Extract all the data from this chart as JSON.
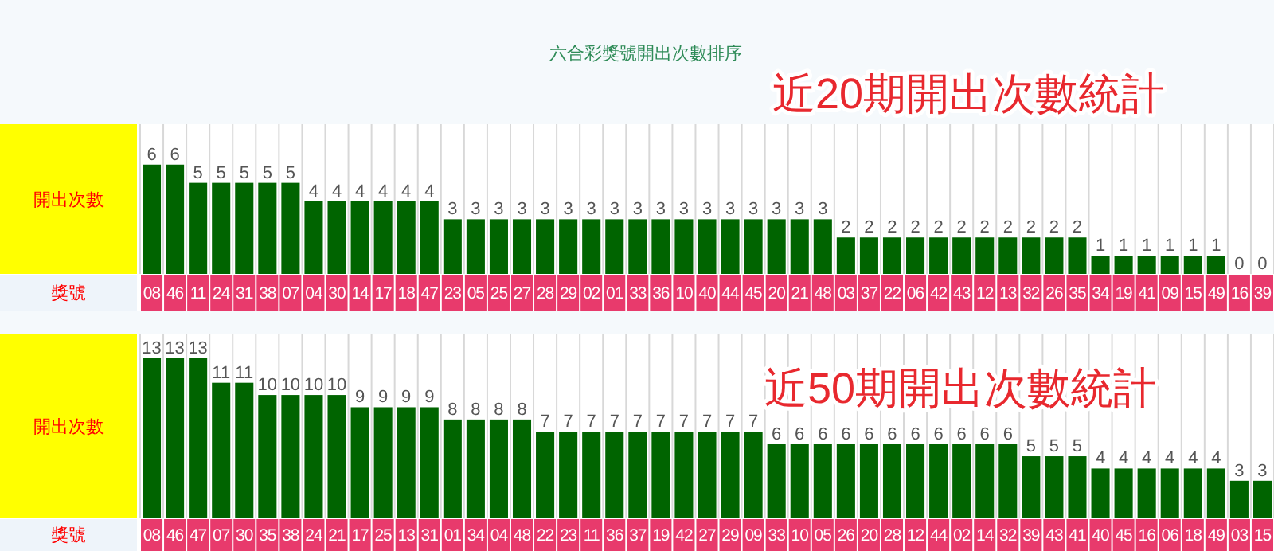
{
  "chart_data": [
    {
      "type": "bar",
      "title": "六合彩獎號開出次數排序",
      "subtitle": "近20期開出次數統計",
      "ylabel": "開出次數",
      "xlabel": "獎號",
      "grid": "x",
      "data_labels": true,
      "color": "#006400",
      "categories": [
        "08",
        "46",
        "11",
        "24",
        "31",
        "38",
        "07",
        "04",
        "30",
        "14",
        "17",
        "18",
        "47",
        "23",
        "05",
        "25",
        "27",
        "28",
        "29",
        "02",
        "01",
        "33",
        "36",
        "10",
        "40",
        "44",
        "45",
        "20",
        "21",
        "48",
        "03",
        "37",
        "22",
        "06",
        "42",
        "43",
        "12",
        "13",
        "32",
        "26",
        "35",
        "34",
        "19",
        "41",
        "09",
        "15",
        "49",
        "16",
        "39"
      ],
      "values": [
        6,
        6,
        5,
        5,
        5,
        5,
        5,
        4,
        4,
        4,
        4,
        4,
        4,
        3,
        3,
        3,
        3,
        3,
        3,
        3,
        3,
        3,
        3,
        3,
        3,
        3,
        3,
        3,
        3,
        3,
        2,
        2,
        2,
        2,
        2,
        2,
        2,
        2,
        2,
        2,
        2,
        1,
        1,
        1,
        1,
        1,
        1,
        0,
        0
      ]
    },
    {
      "type": "bar",
      "subtitle": "近50期開出次數統計",
      "ylabel": "開出次數",
      "xlabel": "獎號",
      "grid": "x",
      "data_labels": true,
      "color": "#006400",
      "categories": [
        "08",
        "46",
        "47",
        "07",
        "30",
        "35",
        "38",
        "24",
        "21",
        "17",
        "25",
        "13",
        "31",
        "01",
        "34",
        "04",
        "48",
        "22",
        "23",
        "11",
        "36",
        "37",
        "19",
        "42",
        "27",
        "29",
        "09",
        "33",
        "10",
        "05",
        "26",
        "20",
        "28",
        "12",
        "44",
        "02",
        "14",
        "32",
        "39",
        "43",
        "41",
        "40",
        "45",
        "16",
        "06",
        "18",
        "49",
        "03",
        "15"
      ],
      "values": [
        13,
        13,
        13,
        11,
        11,
        10,
        10,
        10,
        10,
        9,
        9,
        9,
        9,
        8,
        8,
        8,
        8,
        7,
        7,
        7,
        7,
        7,
        7,
        7,
        7,
        7,
        7,
        6,
        6,
        6,
        6,
        6,
        6,
        6,
        6,
        6,
        6,
        6,
        5,
        5,
        5,
        4,
        4,
        4,
        4,
        4,
        4,
        3,
        3
      ]
    }
  ]
}
